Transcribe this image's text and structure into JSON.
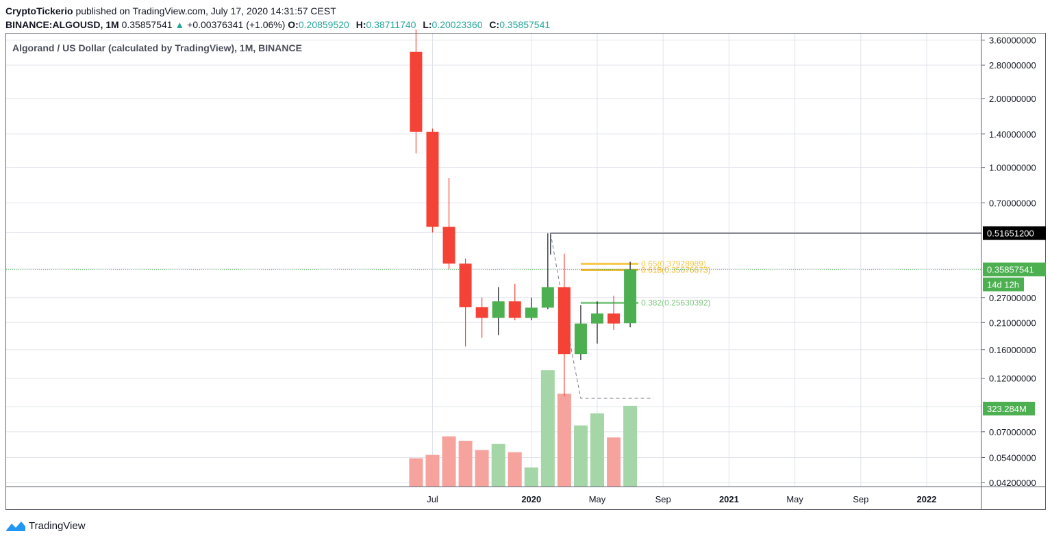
{
  "header": {
    "author": "CryptoTickerio",
    "published_text": "published on TradingView.com, July 17, 2020 14:31:57 CEST",
    "symbol": "BINANCE:ALGOUSD, 1M",
    "last": "0.35857541",
    "arrow": "▲",
    "change": "+0.00376341 (+1.06%)",
    "o_label": "O:",
    "o": "0.20859520",
    "h_label": "H:",
    "h": "0.38711740",
    "l_label": "L:",
    "l": "0.20023360",
    "c_label": "C:",
    "c": "0.35857541"
  },
  "footer": {
    "brand": "TradingView"
  },
  "colors": {
    "up": "#4caf50",
    "down": "#f44336",
    "vol_up": "#a5d6a7",
    "vol_down": "#f6a39e",
    "grid": "#e0e3eb",
    "fib_618": "#f5c84c",
    "fib_382": "#81c784"
  },
  "chart_data": {
    "type": "candlestick",
    "title": "Algorand / US Dollar (calculated by TradingView), 1M, BINANCE",
    "y_scale": "log",
    "ylim": [
      0.04,
      3.9
    ],
    "y_ticks": [
      {
        "value": 3.6,
        "label": "3.60000000"
      },
      {
        "value": 2.8,
        "label": "2.80000000"
      },
      {
        "value": 2.0,
        "label": "2.00000000"
      },
      {
        "value": 1.4,
        "label": "1.40000000"
      },
      {
        "value": 1.0,
        "label": "1.00000000"
      },
      {
        "value": 0.7,
        "label": "0.70000000"
      },
      {
        "value": 0.27,
        "label": "0.27000000"
      },
      {
        "value": 0.21,
        "label": "0.21000000"
      },
      {
        "value": 0.16,
        "label": "0.16000000"
      },
      {
        "value": 0.12,
        "label": "0.12000000"
      },
      {
        "value": 0.07,
        "label": "0.07000000"
      },
      {
        "value": 0.054,
        "label": "0.05400000"
      },
      {
        "value": 0.042,
        "label": "0.04200000"
      }
    ],
    "x_ticks": [
      {
        "date": "2019-07",
        "label": "Jul",
        "bold": false
      },
      {
        "date": "2020-01",
        "label": "2020",
        "bold": true
      },
      {
        "date": "2020-05",
        "label": "May",
        "bold": false
      },
      {
        "date": "2020-09",
        "label": "Sep",
        "bold": false
      },
      {
        "date": "2021-01",
        "label": "2021",
        "bold": true
      },
      {
        "date": "2021-05",
        "label": "May",
        "bold": false
      },
      {
        "date": "2021-09",
        "label": "Sep",
        "bold": false
      },
      {
        "date": "2022-01",
        "label": "2022",
        "bold": true
      }
    ],
    "candles": [
      {
        "date": "2019-06",
        "open": 3.2,
        "high": 4.0,
        "low": 1.15,
        "close": 1.43,
        "volume": 52
      },
      {
        "date": "2019-07",
        "open": 1.43,
        "high": 1.48,
        "low": 0.52,
        "close": 0.55,
        "volume": 58
      },
      {
        "date": "2019-08",
        "open": 0.55,
        "high": 0.9,
        "low": 0.36,
        "close": 0.38,
        "volume": 92
      },
      {
        "date": "2019-09",
        "open": 0.38,
        "high": 0.4,
        "low": 0.165,
        "close": 0.245,
        "volume": 84
      },
      {
        "date": "2019-10",
        "open": 0.245,
        "high": 0.27,
        "low": 0.18,
        "close": 0.22,
        "volume": 67
      },
      {
        "date": "2019-11",
        "open": 0.22,
        "high": 0.3,
        "low": 0.185,
        "close": 0.26,
        "volume": 78
      },
      {
        "date": "2019-12",
        "open": 0.26,
        "high": 0.31,
        "low": 0.215,
        "close": 0.22,
        "volume": 63
      },
      {
        "date": "2020-01",
        "open": 0.22,
        "high": 0.27,
        "low": 0.215,
        "close": 0.244,
        "volume": 35
      },
      {
        "date": "2020-02",
        "open": 0.244,
        "high": 0.516,
        "low": 0.24,
        "close": 0.3,
        "volume": 213
      },
      {
        "date": "2020-03",
        "open": 0.3,
        "high": 0.42,
        "low": 0.1,
        "close": 0.153,
        "volume": 170
      },
      {
        "date": "2020-04",
        "open": 0.153,
        "high": 0.25,
        "low": 0.144,
        "close": 0.208,
        "volume": 112
      },
      {
        "date": "2020-05",
        "open": 0.208,
        "high": 0.26,
        "low": 0.17,
        "close": 0.23,
        "volume": 134
      },
      {
        "date": "2020-06",
        "open": 0.23,
        "high": 0.275,
        "low": 0.195,
        "close": 0.208,
        "volume": 90
      },
      {
        "date": "2020-07",
        "open": 0.2086,
        "high": 0.3871,
        "low": 0.2002,
        "close": 0.3586,
        "volume": 148
      }
    ],
    "fibonacci": [
      {
        "level": "0.65",
        "value": 0.37928989,
        "label": "0.65(0.37928989)"
      },
      {
        "level": "0.618",
        "value": 0.35676673,
        "label": "0.618(0.35676673)"
      },
      {
        "level": "0.382",
        "value": 0.25630392,
        "label": "0.382(0.25630392)"
      }
    ],
    "horizontal_line": {
      "value": 0.516512,
      "label": "0.51651200"
    },
    "last_price_label": "0.35857541",
    "countdown_label": "14d 12h",
    "volume_label": "323.284M"
  }
}
